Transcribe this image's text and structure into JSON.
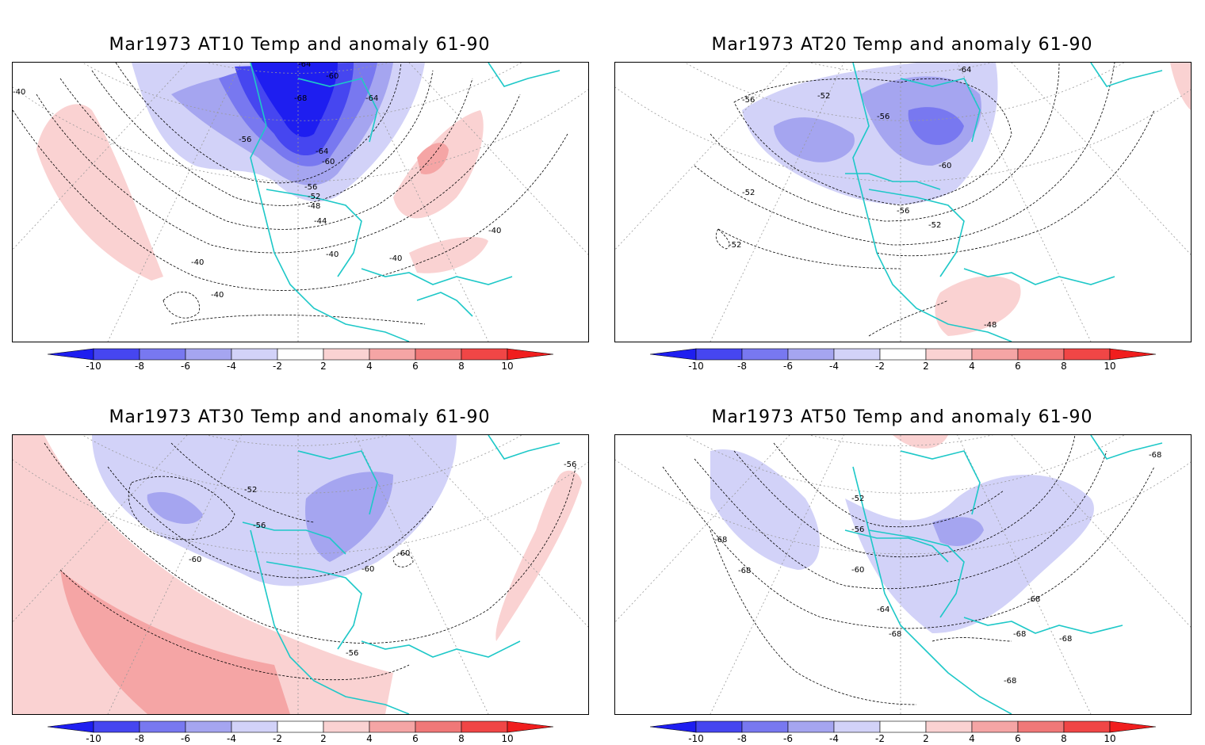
{
  "panels": [
    {
      "id": "p1",
      "title": "Mar1973 AT10 Temp and anomaly 61-90",
      "contour_labels": [
        "-64",
        "-60",
        "-68",
        "-64",
        "-56",
        "-64",
        "-60",
        "-56",
        "-52",
        "-48",
        "-44",
        "-40",
        "-40",
        "-40",
        "-40",
        "-40",
        "-40"
      ]
    },
    {
      "id": "p2",
      "title": "Mar1973 AT20 Temp and anomaly 61-90",
      "contour_labels": [
        "-64",
        "-56",
        "-52",
        "-56",
        "-60",
        "-52",
        "-56",
        "-52",
        "-52",
        "-48"
      ]
    },
    {
      "id": "p3",
      "title": "Mar1973 AT30 Temp and anomaly 61-90",
      "contour_labels": [
        "-56",
        "-52",
        "-56",
        "-60",
        "-60",
        "-60",
        "-56"
      ]
    },
    {
      "id": "p4",
      "title": "Mar1973 AT50 Temp and anomaly 61-90",
      "contour_labels": [
        "-68",
        "-52",
        "-56",
        "-68",
        "-68",
        "-60",
        "-64",
        "-68",
        "-68",
        "-68",
        "-68",
        "-68"
      ]
    }
  ],
  "colorbar": {
    "ticks": [
      "-10",
      "-8",
      "-6",
      "-4",
      "-2",
      "2",
      "4",
      "6",
      "8",
      "10"
    ],
    "colors": [
      "#1e1ef0",
      "#4646f0",
      "#7878f0",
      "#a5a5f0",
      "#d2d2f8",
      "#ffffff",
      "#fad2d2",
      "#f5a5a5",
      "#f07878",
      "#f04646",
      "#f01e1e"
    ]
  },
  "colors": {
    "coastline": "#1ec8c8",
    "contour": "#000000",
    "grid": "#999999"
  }
}
